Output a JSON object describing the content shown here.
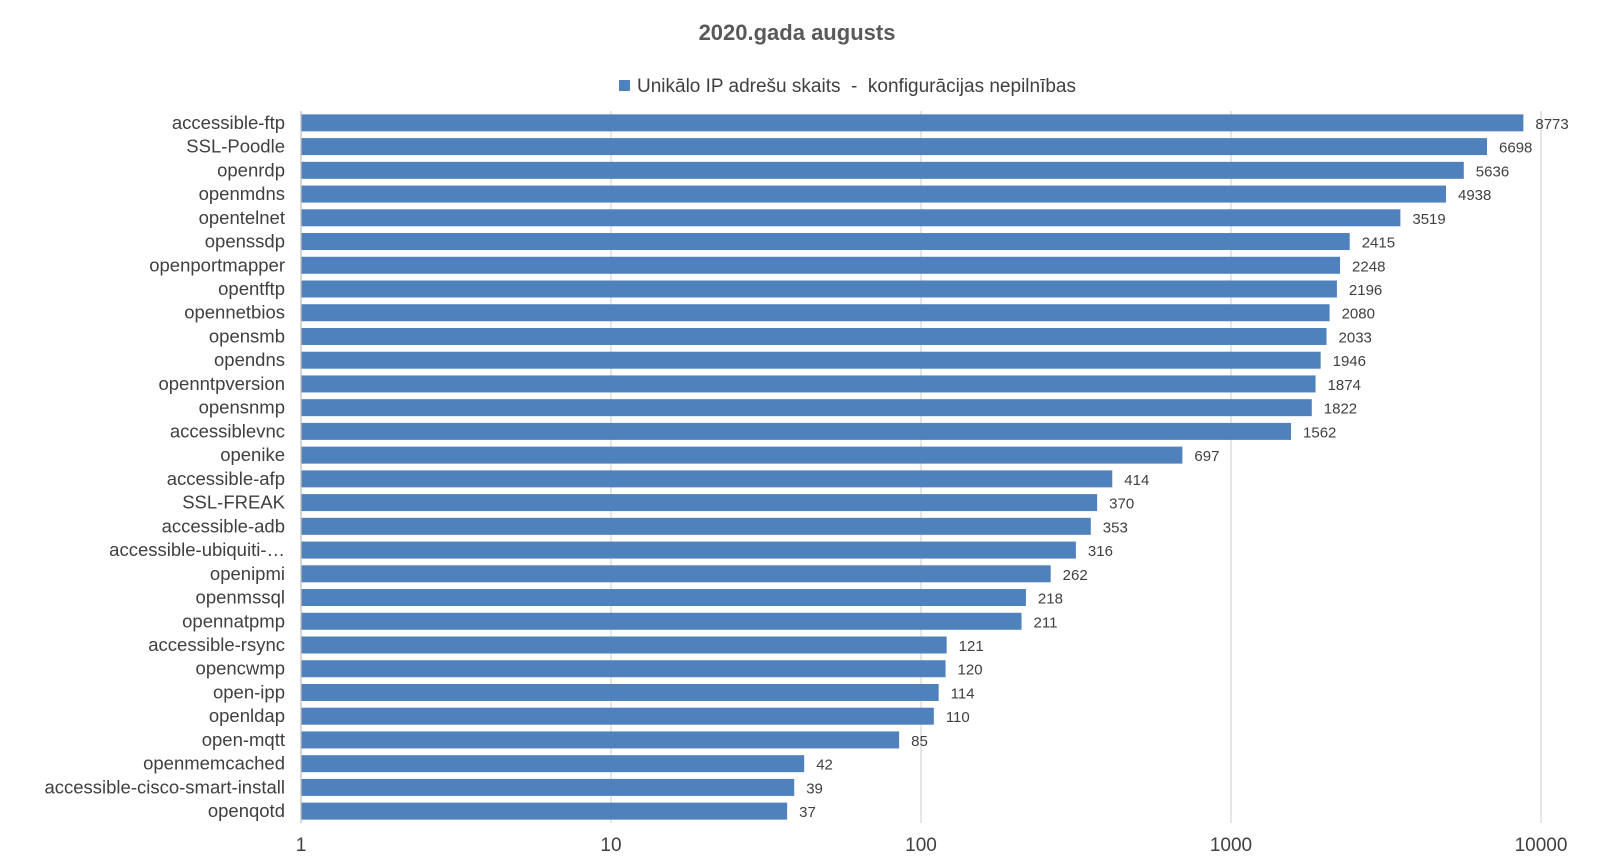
{
  "chart_data": {
    "type": "bar",
    "orientation": "horizontal",
    "title": "2020.gada augusts",
    "x_scale": "log",
    "xlim": [
      1,
      10000
    ],
    "x_ticks": [
      "1",
      "10",
      "100",
      "1000",
      "10000"
    ],
    "grid": true,
    "legend_position": "top",
    "bar_color": "#4f81bd",
    "categories": [
      "accessible-ftp",
      "SSL-Poodle",
      "openrdp",
      "openmdns",
      "opentelnet",
      "openssdp",
      "openportmapper",
      "opentftp",
      "opennetbios",
      "opensmb",
      "opendns",
      "openntpversion",
      "opensnmp",
      "accessiblevnc",
      "openike",
      "accessible-afp",
      "SSL-FREAK",
      "accessible-adb",
      "accessible-ubiquiti-…",
      "openipmi",
      "openmssql",
      "opennatpmp",
      "accessible-rsync",
      "opencwmp",
      "open-ipp",
      "openldap",
      "open-mqtt",
      "openmemcached",
      "accessible-cisco-smart-install",
      "openqotd"
    ],
    "series": [
      {
        "name": "Unikālo IP adrešu skaits  -  konfigurācijas nepilnības",
        "values": [
          8773,
          6698,
          5636,
          4938,
          3519,
          2415,
          2248,
          2196,
          2080,
          2033,
          1946,
          1874,
          1822,
          1562,
          697,
          414,
          370,
          353,
          316,
          262,
          218,
          211,
          121,
          120,
          114,
          110,
          85,
          42,
          39,
          37
        ]
      }
    ]
  }
}
